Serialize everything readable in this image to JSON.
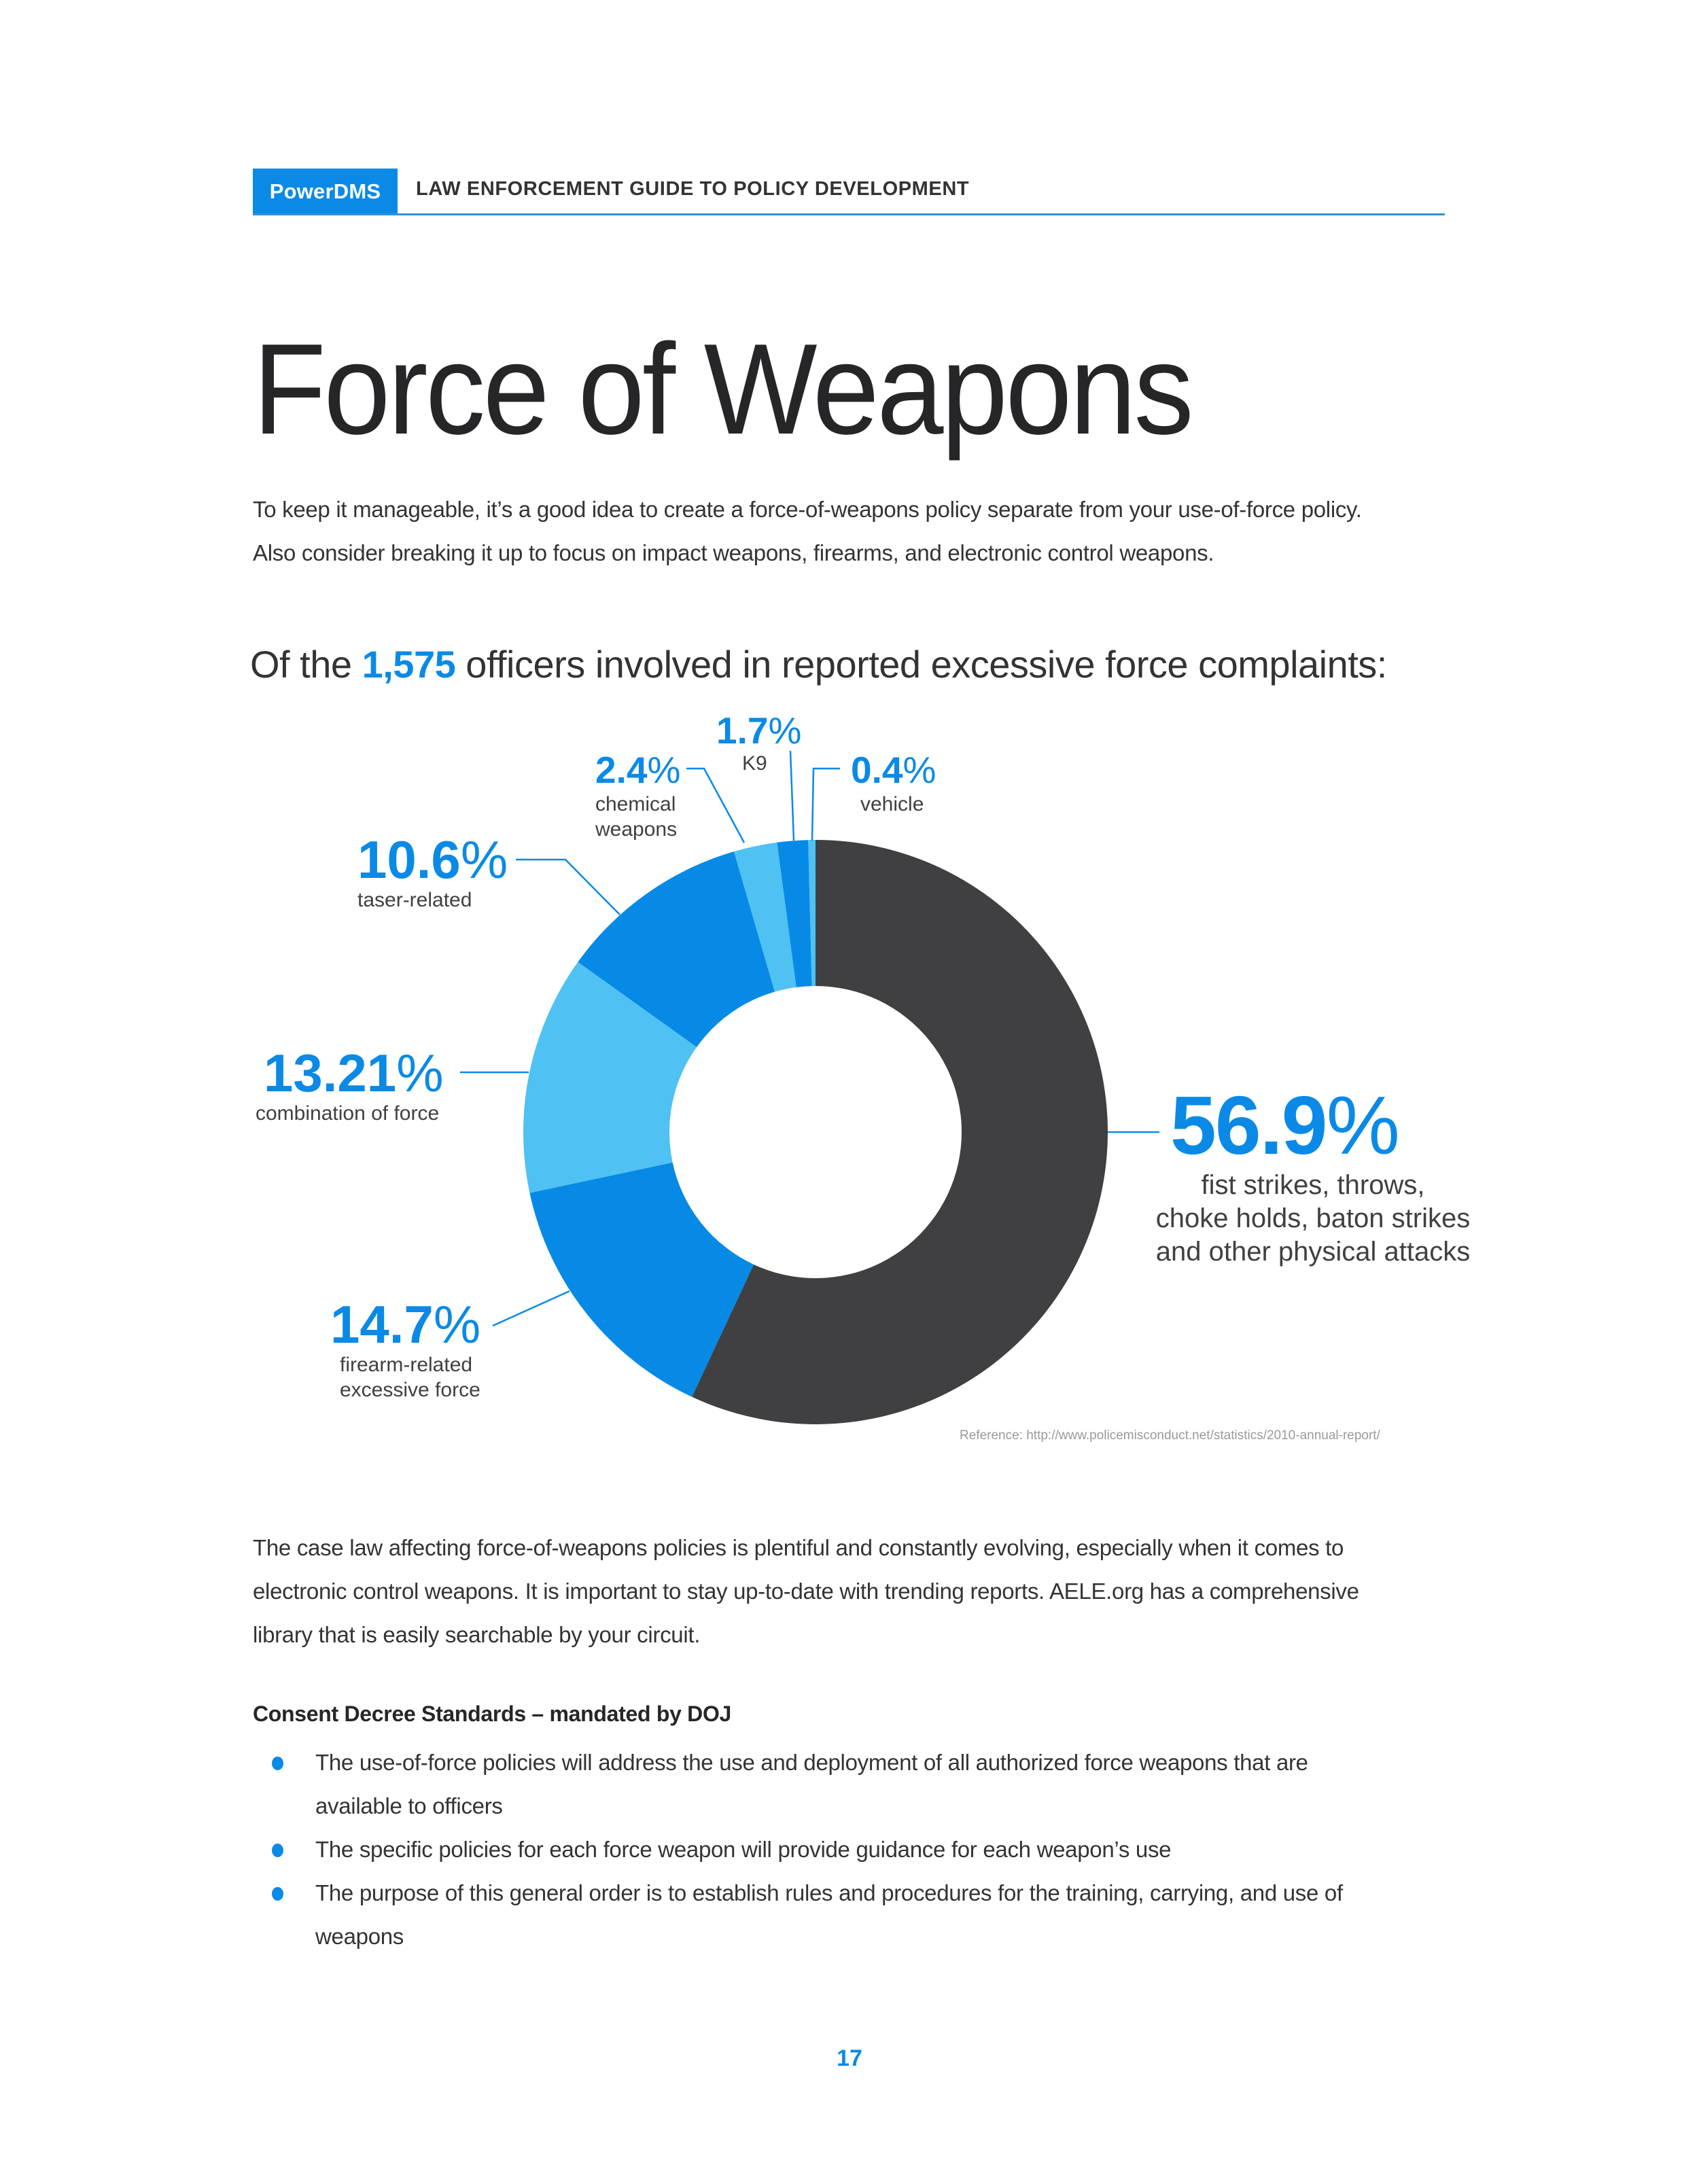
{
  "header": {
    "brand": "PowerDMS",
    "title": "LAW ENFORCEMENT GUIDE TO POLICY DEVELOPMENT",
    "accent_color": "#0A8AE6"
  },
  "page_title": "Force of Weapons",
  "intro": {
    "lines": [
      "To keep it manageable, it’s a good idea to create a force-of-weapons policy separate from your use-of-force policy.",
      "Also consider breaking it up to focus on impact weapons, firearms, and electronic control weapons."
    ]
  },
  "chart_heading": {
    "prefix": "Of the ",
    "highlight": "1,575",
    "suffix": " officers involved in reported excessive force complaints:"
  },
  "chart_data": {
    "type": "pie",
    "subtype": "donut",
    "title": "Of the 1,575 officers involved in reported excessive force complaints:",
    "categories": [
      "fist strikes, throws, choke holds, baton strikes and other physical attacks",
      "firearm-related excessive force",
      "combination of force",
      "taser-related",
      "chemical weapons",
      "K9",
      "vehicle"
    ],
    "values": [
      56.9,
      14.7,
      13.21,
      10.6,
      2.4,
      1.7,
      0.4
    ],
    "unit": "%",
    "colors": [
      "#404042",
      "#068AE6",
      "#4FC1F2",
      "#068AE6",
      "#4FC1F2",
      "#068AE6",
      "#4FC1F2"
    ],
    "start_angle_deg": 0,
    "direction": "clockwise from 12 o'clock",
    "legend": "none (direct labels with leader lines)",
    "grid": false
  },
  "labels": [
    {
      "value": "56.9",
      "pct": "%",
      "caption_lines": [
        "fist strikes, throws,",
        "choke holds, baton strikes",
        "and other physical attacks"
      ]
    },
    {
      "value": "14.7",
      "pct": "%",
      "caption_lines": [
        "firearm-related",
        "excessive force"
      ]
    },
    {
      "value": "13.21",
      "pct": "%",
      "caption_lines": [
        "combination of force"
      ]
    },
    {
      "value": "10.6",
      "pct": "%",
      "caption_lines": [
        "taser-related"
      ]
    },
    {
      "value": "2.4",
      "pct": "%",
      "caption_lines": [
        "chemical",
        "weapons"
      ]
    },
    {
      "value": "1.7",
      "pct": "%",
      "caption_lines": [
        "K9"
      ]
    },
    {
      "value": "0.4",
      "pct": "%",
      "caption_lines": [
        "vehicle"
      ]
    }
  ],
  "reference": "Reference:  http://www.policemisconduct.net/statistics/2010-annual-report/",
  "body": {
    "lines": [
      "The case law affecting force-of-weapons policies is plentiful and constantly evolving, especially when it comes to",
      "electronic control weapons. It is important to stay up-to-date with trending reports. AELE.org has a comprehensive",
      "library that is easily searchable by your circuit."
    ]
  },
  "consent_decree": {
    "heading": "Consent Decree Standards – mandated by DOJ",
    "bullets": [
      {
        "lines": [
          "The use-of-force policies will address the use and deployment of all authorized force weapons that are",
          "available to officers"
        ]
      },
      {
        "lines": [
          "The specific policies for each force weapon will provide guidance for each weapon’s use"
        ]
      },
      {
        "lines": [
          "The purpose of this general order is to establish rules and procedures for the training, carrying, and use of",
          "weapons"
        ]
      }
    ]
  },
  "page_number": "17"
}
